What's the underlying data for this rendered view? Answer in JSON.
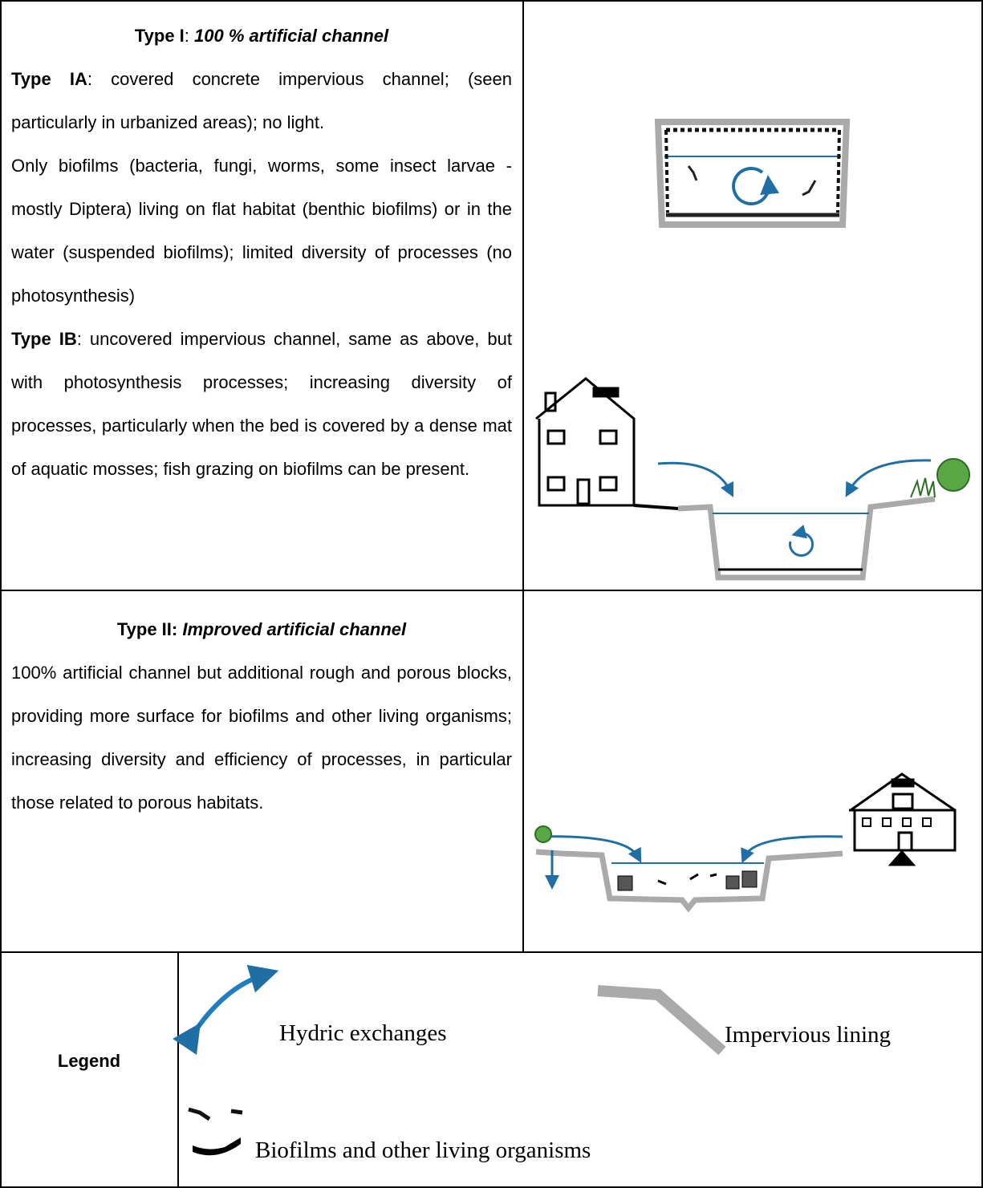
{
  "rows": [
    {
      "title": {
        "label": "Type I",
        "sep": ":",
        "name": "100 % artificial channel"
      },
      "paragraphs": [
        {
          "label": "Type IA",
          "text": ": covered concrete impervious channel; (seen particularly in urbanized areas); no light."
        },
        {
          "text": "Only biofilms (bacteria, fungi, worms, some insect larvae - mostly Diptera) living on flat habitat (benthic biofilms) or in the water (suspended biofilms); limited diversity of processes (no photosynthesis)"
        },
        {
          "label": "Type IB",
          "text": ": uncovered impervious channel, same as above, but with photosynthesis processes; increasing diversity of processes, particularly when the bed is covered by a dense mat of aquatic mosses; fish grazing on biofilms can be present."
        }
      ]
    },
    {
      "title": {
        "label": "Type II:",
        "name": "Improved artificial channel"
      },
      "paragraphs": [
        {
          "text": "100% artificial channel but additional rough and porous blocks, providing more surface for biofilms and other living organisms; increasing diversity and efficiency of processes, in particular those related to porous habitats."
        }
      ]
    }
  ],
  "legend": {
    "title": "Legend",
    "items": [
      "Hydric exchanges",
      "Impervious lining",
      "Biofilms and other living organisms"
    ]
  }
}
